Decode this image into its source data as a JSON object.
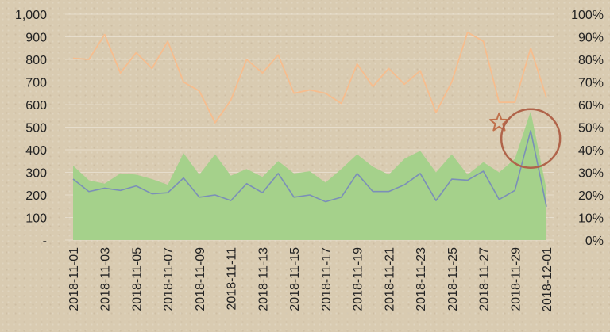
{
  "chart_data": {
    "type": "area",
    "title": "",
    "xlabel": "",
    "ylabel": "",
    "x": [
      "2018-11-01",
      "2018-11-02",
      "2018-11-03",
      "2018-11-04",
      "2018-11-05",
      "2018-11-06",
      "2018-11-07",
      "2018-11-08",
      "2018-11-09",
      "2018-11-10",
      "2018-11-11",
      "2018-11-12",
      "2018-11-13",
      "2018-11-14",
      "2018-11-15",
      "2018-11-16",
      "2018-11-17",
      "2018-11-18",
      "2018-11-19",
      "2018-11-20",
      "2018-11-21",
      "2018-11-22",
      "2018-11-23",
      "2018-11-24",
      "2018-11-25",
      "2018-11-26",
      "2018-11-27",
      "2018-11-28",
      "2018-11-29",
      "2018-11-30",
      "2018-12-01"
    ],
    "x_tick_labels": [
      "2018-11-01",
      "2018-11-03",
      "2018-11-05",
      "2018-11-07",
      "2018-11-09",
      "2018-11-11",
      "2018-11-13",
      "2018-11-15",
      "2018-11-17",
      "2018-11-19",
      "2018-11-21",
      "2018-11-23",
      "2018-11-25",
      "2018-11-27",
      "2018-11-29",
      "2018-12-01"
    ],
    "y_left_ticks": [
      "-",
      "100",
      "200",
      "300",
      "400",
      "500",
      "600",
      "700",
      "800",
      "900",
      "1,000"
    ],
    "y_right_ticks": [
      "0%",
      "10%",
      "20%",
      "30%",
      "40%",
      "50%",
      "60%",
      "70%",
      "80%",
      "90%",
      "100%"
    ],
    "ylim_left": [
      0,
      1000
    ],
    "ylim_right": [
      0,
      1
    ],
    "grid": true,
    "series": [
      {
        "type": "area",
        "axis": "left",
        "color": "#a5d18b",
        "values": [
          330,
          265,
          250,
          295,
          290,
          270,
          245,
          385,
          290,
          380,
          285,
          315,
          280,
          350,
          295,
          305,
          255,
          315,
          380,
          325,
          290,
          360,
          395,
          300,
          380,
          290,
          345,
          300,
          360,
          570,
          225
        ]
      },
      {
        "type": "line",
        "axis": "left",
        "color": "#7b8fb8",
        "values": [
          270,
          215,
          230,
          220,
          240,
          205,
          210,
          275,
          190,
          200,
          175,
          250,
          210,
          295,
          190,
          200,
          170,
          190,
          295,
          215,
          215,
          245,
          295,
          175,
          270,
          265,
          305,
          180,
          220,
          485,
          148
        ]
      },
      {
        "type": "line",
        "axis": "right",
        "color": "#f6bd8e",
        "values": [
          0.805,
          0.8,
          0.91,
          0.74,
          0.83,
          0.76,
          0.88,
          0.7,
          0.66,
          0.52,
          0.62,
          0.8,
          0.74,
          0.82,
          0.65,
          0.665,
          0.65,
          0.605,
          0.78,
          0.68,
          0.76,
          0.69,
          0.75,
          0.565,
          0.7,
          0.92,
          0.88,
          0.61,
          0.61,
          0.85,
          0.63
        ]
      }
    ],
    "annotations": [
      {
        "shape": "star",
        "color": "#c0704a",
        "x": "2018-11-28",
        "y_right": 0.52
      },
      {
        "shape": "circle",
        "color": "#b0644a",
        "x": "2018-11-30",
        "y_right": 0.45
      }
    ]
  }
}
